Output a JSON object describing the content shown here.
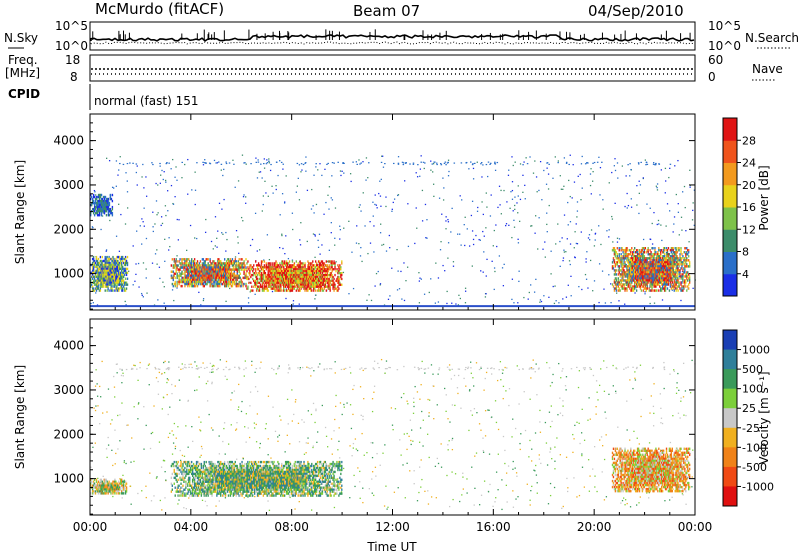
{
  "header": {
    "station": "McMurdo (fitACF)",
    "beam": "Beam 07",
    "date": "04/Sep/2010"
  },
  "top_panels": {
    "nsky_label": "N.Sky",
    "nsky_ticks": [
      "10^5",
      "10^0"
    ],
    "nsearch_label": "N.Search",
    "nsearch_ticks": [
      "10^5",
      "10^0"
    ],
    "freq_label_1": "Freq.",
    "freq_label_2": "[MHz]",
    "freq_ticks": [
      "18",
      "8"
    ],
    "nave_label": "Nave",
    "nave_ticks": [
      "60",
      "0"
    ],
    "cpid_label": "CPID",
    "cpid_text": "normal (fast) 151"
  },
  "chart_data": [
    {
      "type": "heatmap",
      "name": "power_panel",
      "ylabel": "Slant Range [km]",
      "xlabel": "Time UT",
      "x_ticks": [
        "00:00",
        "04:00",
        "08:00",
        "12:00",
        "16:00",
        "20:00",
        "00:00"
      ],
      "y_ticks": [
        1000,
        2000,
        3000,
        4000
      ],
      "xlim_hours": [
        0,
        24
      ],
      "ylim_km": [
        180,
        4600
      ],
      "colorbar": {
        "label": "Power [dB]",
        "ticks": [
          "4",
          "8",
          "12",
          "16",
          "20",
          "24",
          "28"
        ],
        "colors": [
          "#1a2ee6",
          "#2a6fc9",
          "#3c8c6a",
          "#7ec24a",
          "#e8d21c",
          "#f39a1e",
          "#f0541c",
          "#e01414"
        ]
      },
      "regions": [
        {
          "t0": 0.0,
          "t1": 1.5,
          "r0": 600,
          "r1": 1400,
          "level": "mid"
        },
        {
          "t0": 0.0,
          "t1": 0.9,
          "r0": 2300,
          "r1": 2800,
          "level": "low"
        },
        {
          "t0": 3.2,
          "t1": 6.2,
          "r0": 700,
          "r1": 1350,
          "level": "mid-high"
        },
        {
          "t0": 6.2,
          "t1": 10.0,
          "r0": 600,
          "r1": 1300,
          "level": "high"
        },
        {
          "t0": 20.7,
          "t1": 23.8,
          "r0": 600,
          "r1": 1600,
          "level": "mid-high"
        }
      ]
    },
    {
      "type": "heatmap",
      "name": "velocity_panel",
      "ylabel": "Slant Range [km]",
      "xlabel": "Time UT",
      "x_ticks": [
        "00:00",
        "04:00",
        "08:00",
        "12:00",
        "16:00",
        "20:00",
        "00:00"
      ],
      "y_ticks": [
        1000,
        2000,
        3000,
        4000
      ],
      "xlim_hours": [
        0,
        24
      ],
      "ylim_km": [
        180,
        4600
      ],
      "colorbar": {
        "label": "Velocity [m s⁻¹]",
        "ticks": [
          "1000",
          "500",
          "100",
          "25",
          "-25",
          "-100",
          "-500",
          "-1000"
        ],
        "colors": [
          "#1a3fb4",
          "#2f7f9a",
          "#3a9a5a",
          "#7ccf3a",
          "#c8c8c8",
          "#f0b020",
          "#f08218",
          "#f04a14",
          "#e01010"
        ]
      },
      "regions": [
        {
          "t0": 0.0,
          "t1": 1.5,
          "r0": 650,
          "r1": 1000,
          "level": "mixed"
        },
        {
          "t0": 3.2,
          "t1": 10.0,
          "r0": 600,
          "r1": 1400,
          "level": "green-gray"
        },
        {
          "t0": 20.7,
          "t1": 23.8,
          "r0": 700,
          "r1": 1700,
          "level": "orange"
        }
      ]
    }
  ],
  "colors": {
    "axis": "#000000",
    "background": "#ffffff"
  }
}
